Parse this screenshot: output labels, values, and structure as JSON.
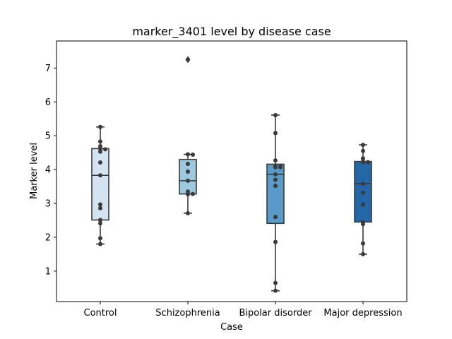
{
  "chart_data": {
    "type": "box",
    "title": "marker_3401 level by disease case",
    "xlabel": "Case",
    "ylabel": "Marker level",
    "ylim": [
      0.1,
      7.8
    ],
    "yticks": [
      1,
      2,
      3,
      4,
      5,
      6,
      7
    ],
    "grid": false,
    "categories": [
      "Control",
      "Schizophrenia",
      "Bipolar disorder",
      "Major depression"
    ],
    "colors": [
      "#d4e3f1",
      "#9cc8e0",
      "#5a9ac8",
      "#2467a9"
    ],
    "box_edge_color": "#3a3a3a",
    "point_color": "#3a3a3a",
    "boxes": [
      {
        "category": "Control",
        "whisker_low": 1.8,
        "q1": 2.51,
        "median": 3.83,
        "q3": 4.62,
        "whisker_high": 5.26,
        "outliers": []
      },
      {
        "category": "Schizophrenia",
        "whisker_low": 2.71,
        "q1": 3.28,
        "median": 3.67,
        "q3": 4.3,
        "whisker_high": 4.45,
        "outliers": [
          7.25
        ]
      },
      {
        "category": "Bipolar disorder",
        "whisker_low": 0.42,
        "q1": 2.41,
        "median": 3.86,
        "q3": 4.16,
        "whisker_high": 5.61,
        "outliers": []
      },
      {
        "category": "Major depression",
        "whisker_low": 1.5,
        "q1": 2.45,
        "median": 3.58,
        "q3": 4.24,
        "whisker_high": 4.73,
        "outliers": []
      }
    ],
    "points": [
      {
        "category": "Control",
        "values": [
          5.26,
          4.83,
          4.69,
          4.62,
          4.6,
          4.53,
          4.21,
          3.83,
          2.97,
          2.86,
          2.51,
          2.41,
          1.97,
          1.8
        ]
      },
      {
        "category": "Schizophrenia",
        "values": [
          7.25,
          4.45,
          4.44,
          4.17,
          3.94,
          3.67,
          3.35,
          3.28,
          3.27,
          3.28,
          2.71
        ]
      },
      {
        "category": "Bipolar disorder",
        "values": [
          5.61,
          5.08,
          4.27,
          4.1,
          4.09,
          4.07,
          4.07,
          3.86,
          3.7,
          3.52,
          2.6,
          1.86,
          0.65,
          0.42
        ]
      },
      {
        "category": "Major depression",
        "values": [
          4.73,
          4.55,
          4.33,
          4.24,
          4.22,
          4.22,
          3.58,
          3.32,
          2.97,
          2.45,
          2.39,
          1.82,
          1.5
        ]
      }
    ]
  }
}
